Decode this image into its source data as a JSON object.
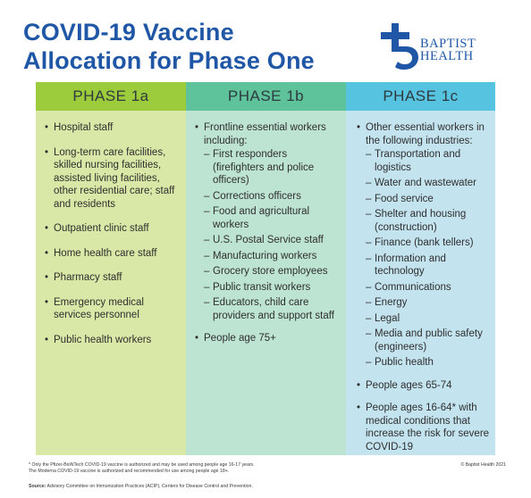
{
  "title": {
    "line1": "COVID-19 Vaccine",
    "line2": "Allocation for Phase One"
  },
  "logo": {
    "line1": "BAPTIST",
    "line2": "HEALTH",
    "icon": "baptist-health-logo-icon",
    "color": "#1f57a6"
  },
  "phases": [
    {
      "header": "PHASE 1a",
      "items": [
        {
          "text": "Hospital staff"
        },
        {
          "text": "Long-term care facilities, skilled nursing facilities, assisted living facilities, other residential care; staff and residents"
        },
        {
          "text": "Outpatient clinic staff"
        },
        {
          "text": "Home health care staff"
        },
        {
          "text": "Pharmacy staff"
        },
        {
          "text": "Emergency medical services personnel"
        },
        {
          "text": "Public health workers"
        }
      ]
    },
    {
      "header": "PHASE 1b",
      "items": [
        {
          "text": "Frontline essential workers including:",
          "sub": [
            "First responders (firefighters and police officers)",
            "Corrections officers",
            "Food and agricultural workers",
            "U.S. Postal Service staff",
            "Manufacturing workers",
            "Grocery store employees",
            "Public transit workers",
            "Educators, child care providers and support staff"
          ]
        },
        {
          "text": "People age 75+"
        }
      ]
    },
    {
      "header": "PHASE 1c",
      "items": [
        {
          "text": "Other essential workers in the following industries:",
          "sub": [
            "Transportation and logistics",
            "Water and wastewater",
            "Food service",
            "Shelter and housing (construction)",
            "Finance (bank tellers)",
            "Information and technology",
            "Communications",
            "Energy",
            "Legal",
            "Media and public safety (engineers)",
            "Public health"
          ]
        },
        {
          "text": "People ages 65-74"
        },
        {
          "text": "People ages 16-64* with medical conditions that increase the risk for severe COVID-19"
        }
      ]
    }
  ],
  "footnote": {
    "line1": "* Only the Pfizer-BioNTech COVID-19 vaccine is authorized and may be used among people age 16-17 years.",
    "line2": "The Moderna COVID-19 vaccine is authorized and recommended for use among people age 18+."
  },
  "copyright": "© Baptist Health 2021",
  "source": {
    "label": "Source:",
    "text": "Advisory Committee on Immunization Practices (ACIP), Centers for Disease Control and Prevention."
  },
  "colors": {
    "title": "#1f57a6",
    "phase1a_header": "#9ccb3b",
    "phase1a_body": "#d9e8a6",
    "phase1b_header": "#5ec29a",
    "phase1b_body": "#bde3d2",
    "phase1c_header": "#56c3e0",
    "phase1c_body": "#c3e3ef"
  }
}
